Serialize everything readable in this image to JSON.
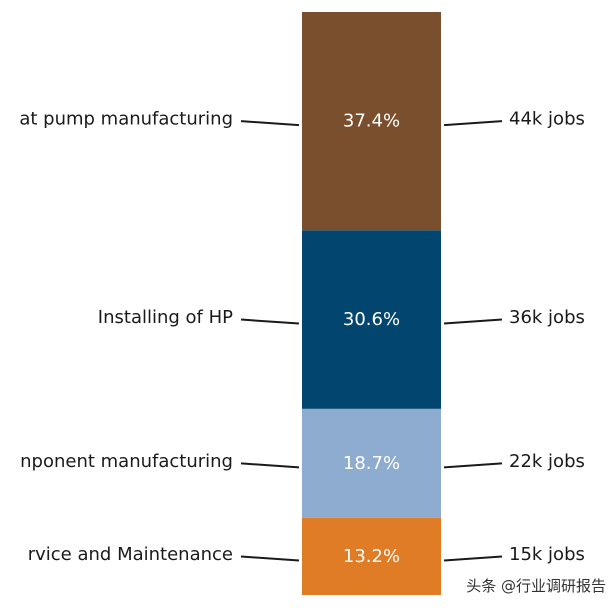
{
  "chart_data": {
    "type": "bar",
    "orientation": "stacked-vertical",
    "title": "",
    "xlabel": "",
    "ylabel": "",
    "categories": [
      "Service and Maintenance",
      "Component manufacturing",
      "Installing of HP",
      "Heat pump manufacturing"
    ],
    "left_labels": [
      "rvice and Maintenance",
      "nponent manufacturing",
      "Installing of HP",
      "at pump manufacturing"
    ],
    "values": [
      13.2,
      18.7,
      30.6,
      37.4
    ],
    "value_labels": [
      "13.2%",
      "18.7%",
      "30.6%",
      "37.4%"
    ],
    "jobs_labels": [
      "15k jobs",
      "22k jobs",
      "36k jobs",
      "44k jobs"
    ],
    "colors": [
      "#E07B26",
      "#8EACCF",
      "#02466F",
      "#7A4F2D"
    ],
    "unit": "%",
    "ylim": [
      0,
      100
    ]
  },
  "watermark": "头条 @行业调研报告"
}
